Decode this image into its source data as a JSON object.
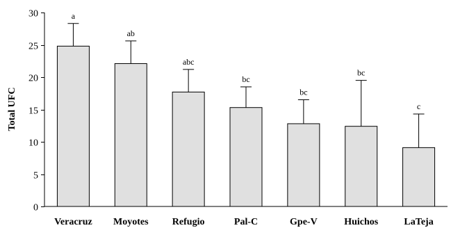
{
  "chart_data": {
    "type": "bar",
    "title": "",
    "xlabel": "",
    "ylabel": "Total UFC",
    "ylim": [
      0,
      30
    ],
    "yticks": [
      0,
      5,
      10,
      15,
      20,
      25,
      30
    ],
    "grid": false,
    "legend": "none",
    "categories": [
      "Veracruz",
      "Moyotes",
      "Refugio",
      "Pal-C",
      "Gpe-V",
      "Huichos",
      "LaTeja"
    ],
    "series": [
      {
        "values": [
          24.8,
          22.1,
          17.7,
          15.3,
          12.8,
          12.4,
          9.1
        ],
        "error": [
          3.5,
          3.5,
          3.5,
          3.2,
          3.7,
          7.1,
          5.2
        ],
        "significance": [
          "a",
          "ab",
          "abc",
          "bc",
          "bc",
          "bc",
          "c"
        ],
        "color": "#e0e0e0",
        "edge_color": "#000000"
      }
    ]
  }
}
